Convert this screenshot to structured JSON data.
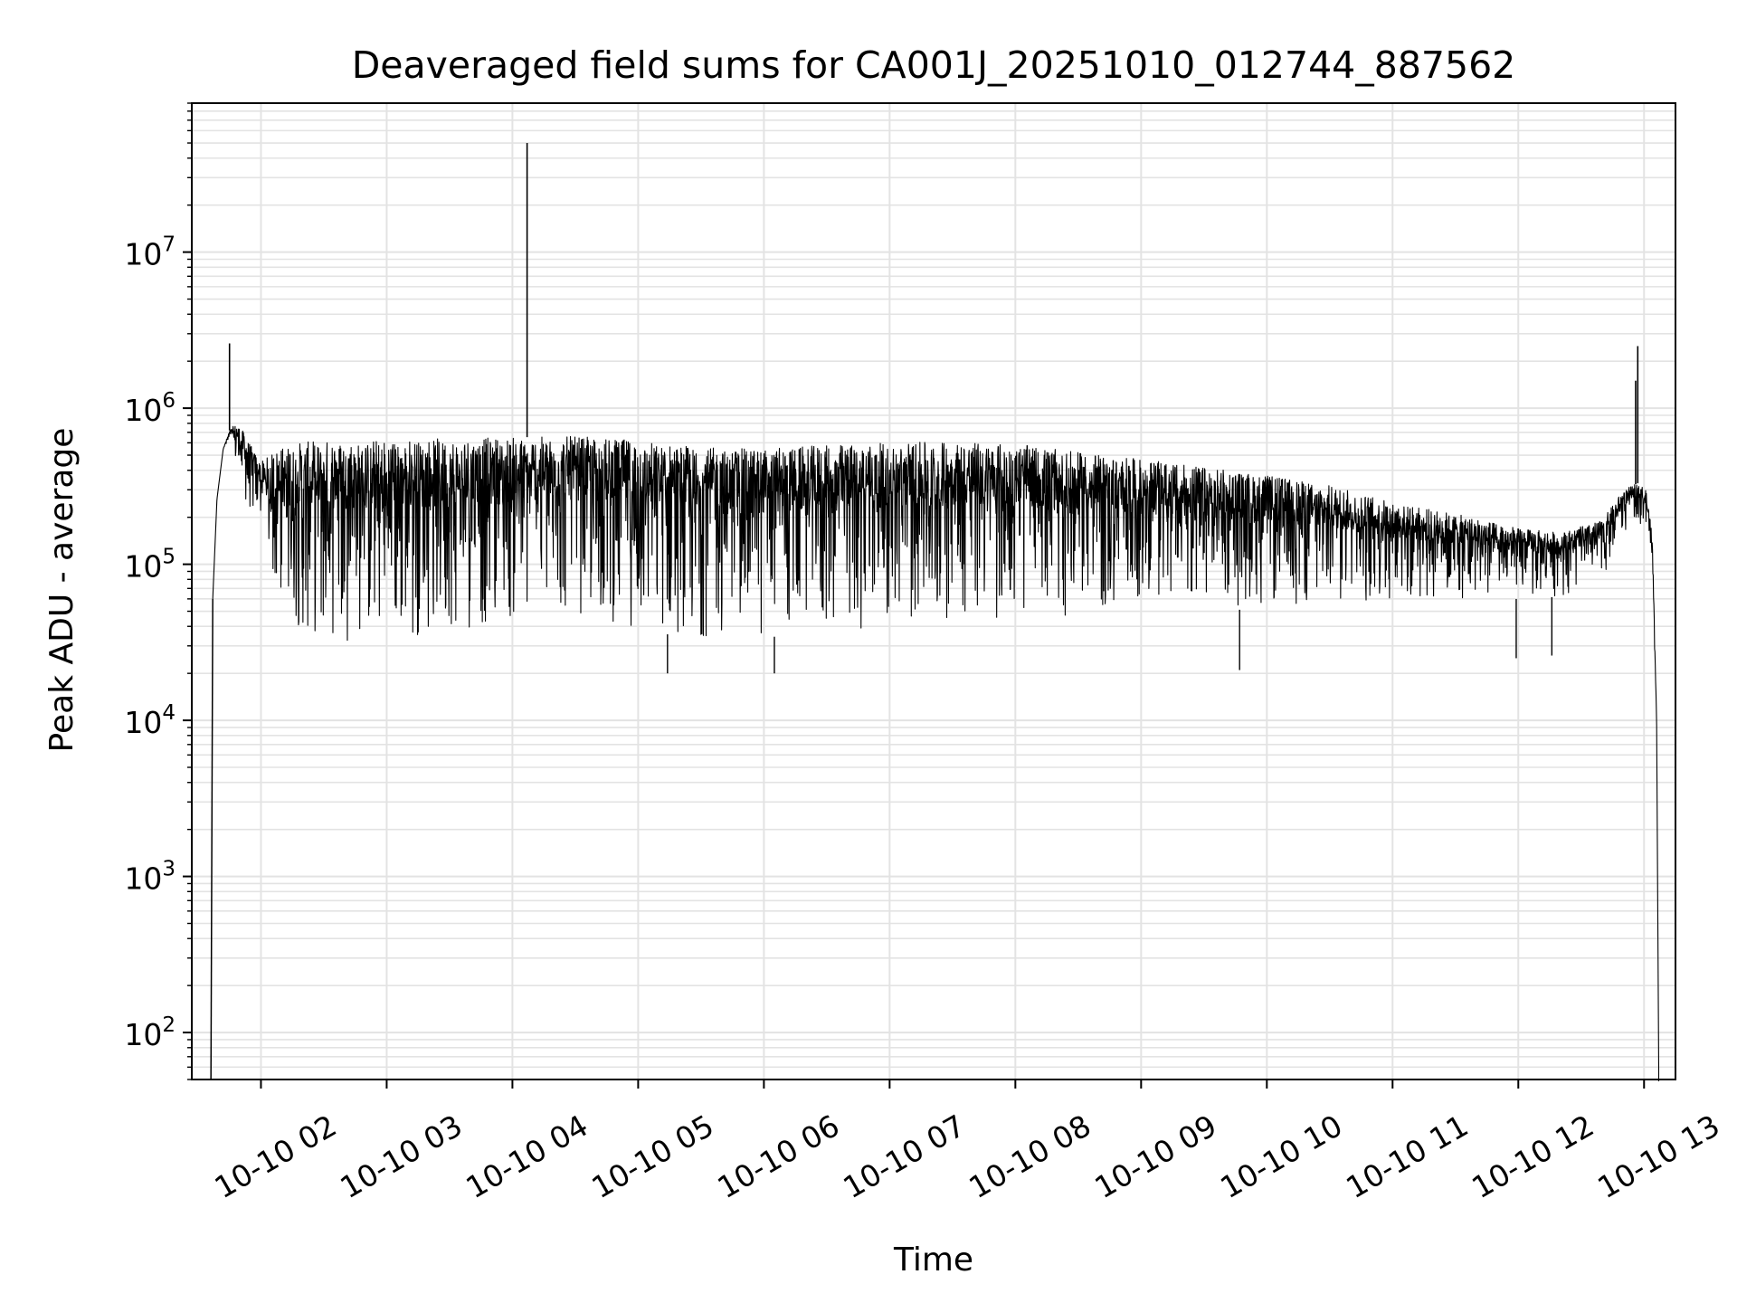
{
  "chart_data": {
    "type": "line",
    "title": "Deaveraged field sums for CA001J_20251010_012744_887562",
    "xlabel": "Time",
    "ylabel": "Peak ADU - average",
    "yscale": "log",
    "grid": true,
    "line_color": "#000000",
    "grid_color": "#e3e3e3",
    "xlim": [
      "2025-10-10 01:27",
      "2025-10-10 13:15"
    ],
    "ylim": [
      50,
      90000000
    ],
    "x_ticks": [
      {
        "value": "2025-10-10 02:00",
        "label": "10-10 02"
      },
      {
        "value": "2025-10-10 03:00",
        "label": "10-10 03"
      },
      {
        "value": "2025-10-10 04:00",
        "label": "10-10 04"
      },
      {
        "value": "2025-10-10 05:00",
        "label": "10-10 05"
      },
      {
        "value": "2025-10-10 06:00",
        "label": "10-10 06"
      },
      {
        "value": "2025-10-10 07:00",
        "label": "10-10 07"
      },
      {
        "value": "2025-10-10 08:00",
        "label": "10-10 08"
      },
      {
        "value": "2025-10-10 09:00",
        "label": "10-10 09"
      },
      {
        "value": "2025-10-10 10:00",
        "label": "10-10 10"
      },
      {
        "value": "2025-10-10 11:00",
        "label": "10-10 11"
      },
      {
        "value": "2025-10-10 12:00",
        "label": "10-10 12"
      },
      {
        "value": "2025-10-10 13:00",
        "label": "10-10 13"
      }
    ],
    "y_ticks": [
      {
        "value": 100,
        "base": "10",
        "exp": "2"
      },
      {
        "value": 1000,
        "base": "10",
        "exp": "3"
      },
      {
        "value": 10000,
        "base": "10",
        "exp": "4"
      },
      {
        "value": 100000,
        "base": "10",
        "exp": "5"
      },
      {
        "value": 1000000,
        "base": "10",
        "exp": "6"
      },
      {
        "value": 10000000,
        "base": "10",
        "exp": "7"
      }
    ],
    "series": [
      {
        "envelope": {
          "x": [
            "2025-10-10 01:37",
            "2025-10-10 01:39",
            "2025-10-10 01:42",
            "2025-10-10 01:45",
            "2025-10-10 01:48",
            "2025-10-10 01:52",
            "2025-10-10 01:56",
            "2025-10-10 02:00",
            "2025-10-10 02:08",
            "2025-10-10 02:15",
            "2025-10-10 02:30",
            "2025-10-10 03:00",
            "2025-10-10 03:30",
            "2025-10-10 04:00",
            "2025-10-10 04:30",
            "2025-10-10 05:00",
            "2025-10-10 05:30",
            "2025-10-10 06:00",
            "2025-10-10 06:30",
            "2025-10-10 07:00",
            "2025-10-10 07:30",
            "2025-10-10 08:00",
            "2025-10-10 08:30",
            "2025-10-10 09:00",
            "2025-10-10 09:30",
            "2025-10-10 10:00",
            "2025-10-10 10:30",
            "2025-10-10 11:00",
            "2025-10-10 11:30",
            "2025-10-10 12:00",
            "2025-10-10 12:20",
            "2025-10-10 12:40",
            "2025-10-10 12:50",
            "2025-10-10 12:57",
            "2025-10-10 13:01",
            "2025-10-10 13:04",
            "2025-10-10 13:06",
            "2025-10-10 13:07"
          ],
          "upper": [
            60000,
            260000,
            550000,
            720000,
            800000,
            700000,
            550000,
            450000,
            550000,
            600000,
            620000,
            630000,
            640000,
            650000,
            660000,
            620000,
            560000,
            550000,
            580000,
            600000,
            610000,
            590000,
            520000,
            470000,
            420000,
            370000,
            320000,
            250000,
            210000,
            170000,
            160000,
            190000,
            300000,
            330000,
            300000,
            150000,
            10000,
            60
          ],
          "lower": [
            60000,
            260000,
            550000,
            600000,
            420000,
            250000,
            200000,
            180000,
            50000,
            35000,
            32000,
            32000,
            35000,
            40000,
            45000,
            38000,
            33000,
            34000,
            36000,
            40000,
            42000,
            43000,
            45000,
            48000,
            50000,
            52000,
            54000,
            56000,
            57000,
            60000,
            62000,
            70000,
            150000,
            200000,
            150000,
            80000,
            10000,
            60
          ]
        },
        "spikes": [
          {
            "x": "2025-10-10 01:45",
            "y": 2600000
          },
          {
            "x": "2025-10-10 04:07",
            "y": 50000000
          },
          {
            "x": "2025-10-10 12:57",
            "y": 2500000
          },
          {
            "x": "2025-10-10 12:56",
            "y": 1500000
          }
        ],
        "dips": [
          {
            "x": "2025-10-10 05:14",
            "y": 20000
          },
          {
            "x": "2025-10-10 06:05",
            "y": 20000
          },
          {
            "x": "2025-10-10 09:47",
            "y": 21000
          },
          {
            "x": "2025-10-10 11:59",
            "y": 25000
          },
          {
            "x": "2025-10-10 12:16",
            "y": 26000
          }
        ]
      }
    ]
  }
}
